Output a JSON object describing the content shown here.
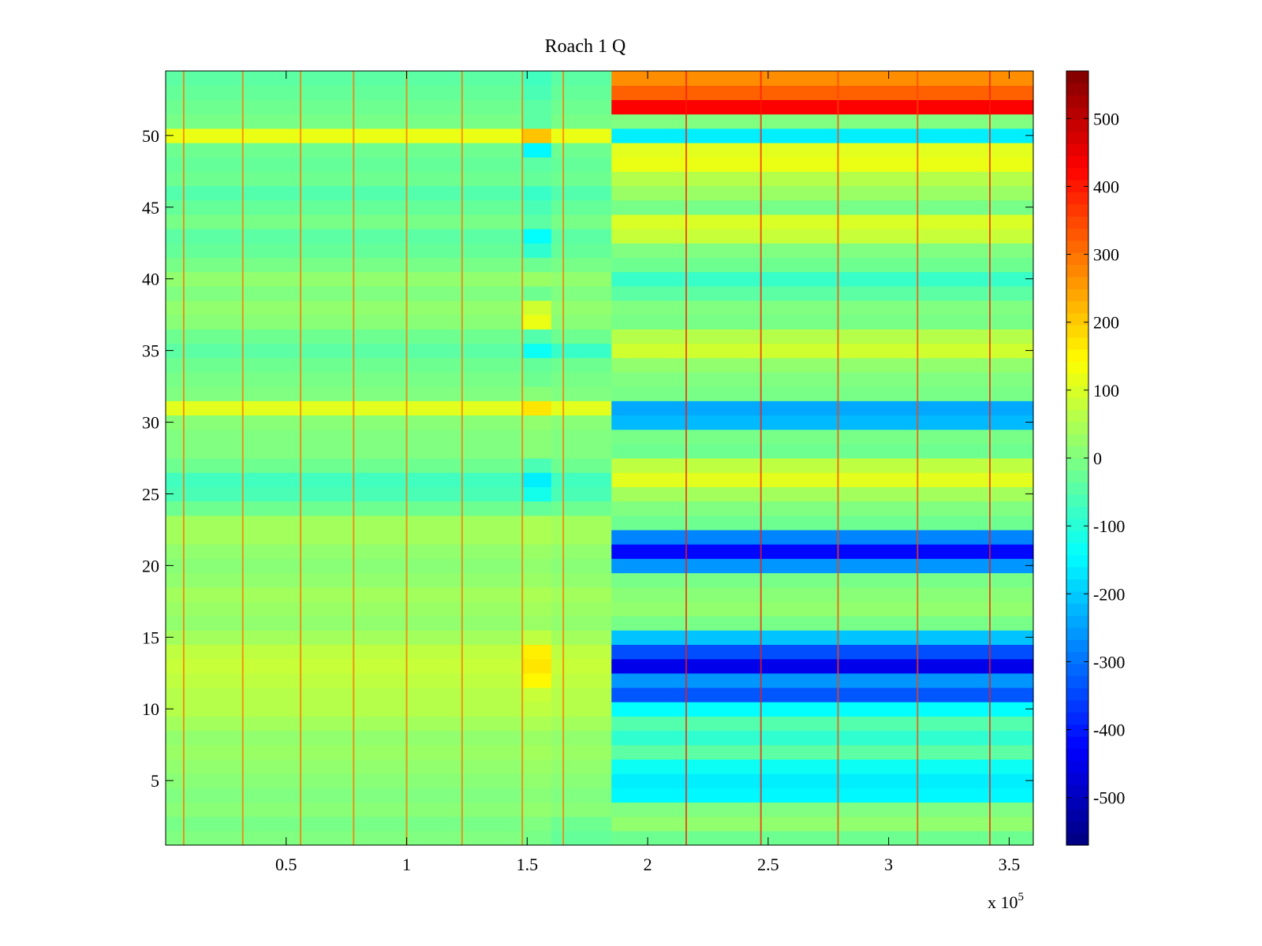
{
  "chart_data": {
    "type": "heatmap",
    "title": "Roach 1 Q",
    "xlabel": "",
    "ylabel": "",
    "x_multiplier_label": "x 10",
    "x_multiplier_exponent": "5",
    "xlim": [
      0,
      3.6
    ],
    "ylim": [
      0.5,
      54.5
    ],
    "x_ticks": [
      0.5,
      1,
      1.5,
      2,
      2.5,
      3,
      3.5
    ],
    "x_tick_labels": [
      "0.5",
      "1",
      "1.5",
      "2",
      "2.5",
      "3",
      "3.5"
    ],
    "y_ticks": [
      5,
      10,
      15,
      20,
      25,
      30,
      35,
      40,
      45,
      50
    ],
    "y_tick_labels": [
      "5",
      "10",
      "15",
      "20",
      "25",
      "30",
      "35",
      "40",
      "45",
      "50"
    ],
    "colormap": "jet",
    "color_range": [
      -570,
      570
    ],
    "colorbar_ticks": [
      500,
      400,
      300,
      200,
      100,
      0,
      -100,
      -200,
      -300,
      -400,
      -500
    ],
    "colorbar_tick_labels": [
      "500",
      "400",
      "300",
      "200",
      "100",
      "0",
      "-100",
      "-200",
      "-300",
      "-400",
      "-500"
    ],
    "x_segments": [
      {
        "x_start": 0,
        "x_end": 1.48
      },
      {
        "x_start": 1.48,
        "x_end": 1.6
      },
      {
        "x_start": 1.6,
        "x_end": 1.85
      },
      {
        "x_start": 1.85,
        "x_end": 3.6
      }
    ],
    "row_values": [
      [
        0,
        -10,
        -30,
        -20
      ],
      [
        -10,
        0,
        -20,
        20
      ],
      [
        10,
        20,
        10,
        0
      ],
      [
        0,
        10,
        0,
        -150
      ],
      [
        10,
        20,
        10,
        -160
      ],
      [
        20,
        30,
        20,
        -130
      ],
      [
        30,
        40,
        30,
        -40
      ],
      [
        20,
        30,
        20,
        -90
      ],
      [
        40,
        50,
        40,
        -50
      ],
      [
        60,
        70,
        60,
        -140
      ],
      [
        60,
        80,
        60,
        -330
      ],
      [
        70,
        150,
        70,
        -260
      ],
      [
        80,
        170,
        80,
        -450
      ],
      [
        70,
        160,
        70,
        -340
      ],
      [
        40,
        70,
        40,
        -210
      ],
      [
        20,
        30,
        20,
        -10
      ],
      [
        30,
        40,
        30,
        20
      ],
      [
        40,
        50,
        40,
        10
      ],
      [
        20,
        30,
        20,
        -10
      ],
      [
        10,
        20,
        10,
        -260
      ],
      [
        20,
        30,
        20,
        -420
      ],
      [
        40,
        50,
        40,
        -280
      ],
      [
        40,
        50,
        40,
        -20
      ],
      [
        -20,
        -30,
        -20,
        0
      ],
      [
        -60,
        -120,
        -60,
        40
      ],
      [
        -70,
        -160,
        -70,
        110
      ],
      [
        -20,
        -60,
        -20,
        70
      ],
      [
        0,
        10,
        0,
        -20
      ],
      [
        0,
        10,
        0,
        -10
      ],
      [
        10,
        20,
        10,
        -220
      ],
      [
        110,
        170,
        110,
        -240
      ],
      [
        0,
        10,
        0,
        -10
      ],
      [
        -10,
        -20,
        -10,
        0
      ],
      [
        -20,
        -30,
        -20,
        20
      ],
      [
        -40,
        -130,
        -80,
        90
      ],
      [
        -20,
        -50,
        -20,
        60
      ],
      [
        10,
        120,
        10,
        -10
      ],
      [
        20,
        90,
        20,
        0
      ],
      [
        0,
        -20,
        0,
        -40
      ],
      [
        20,
        30,
        20,
        -80
      ],
      [
        -10,
        -20,
        -10,
        -20
      ],
      [
        -30,
        -90,
        -30,
        0
      ],
      [
        -40,
        -140,
        -40,
        80
      ],
      [
        -10,
        -40,
        -10,
        100
      ],
      [
        -30,
        -60,
        -30,
        -10
      ],
      [
        -50,
        -80,
        -50,
        30
      ],
      [
        -20,
        -30,
        -20,
        60
      ],
      [
        -30,
        -40,
        -30,
        120
      ],
      [
        -20,
        -150,
        -20,
        110
      ],
      [
        120,
        210,
        120,
        -160
      ],
      [
        -10,
        -40,
        -10,
        0
      ],
      [
        -20,
        -40,
        -20,
        430
      ],
      [
        -30,
        -60,
        -30,
        320
      ],
      [
        -40,
        -70,
        -40,
        270
      ]
    ],
    "vertical_streaks": [
      {
        "x": 0.075,
        "value": 300
      },
      {
        "x": 0.32,
        "value": 300
      },
      {
        "x": 0.56,
        "value": 300
      },
      {
        "x": 0.78,
        "value": 300
      },
      {
        "x": 1.0,
        "value": 300
      },
      {
        "x": 1.23,
        "value": 300
      },
      {
        "x": 1.48,
        "value": 300
      },
      {
        "x": 1.65,
        "value": 300
      },
      {
        "x": 2.16,
        "value": 400
      },
      {
        "x": 2.47,
        "value": 400
      },
      {
        "x": 2.79,
        "value": 350
      },
      {
        "x": 3.12,
        "value": 350
      },
      {
        "x": 3.42,
        "value": 400
      }
    ]
  }
}
